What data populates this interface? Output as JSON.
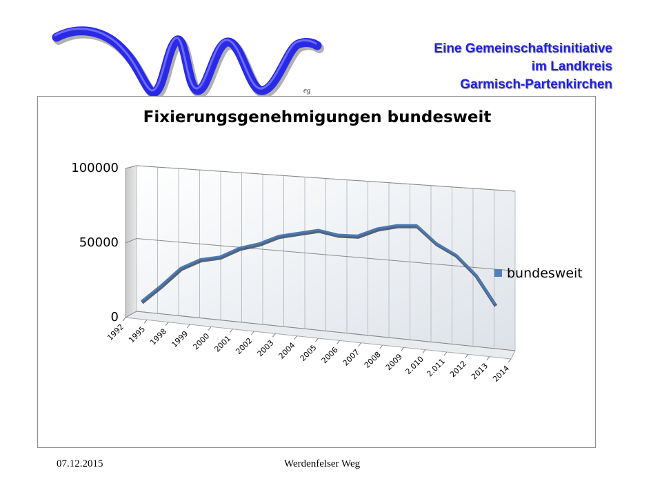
{
  "header": {
    "logo_suffix": "eg",
    "initiative_lines": [
      "Eine Gemeinschaftsinitiative",
      "im Landkreis",
      "Garmisch-Partenkirchen"
    ]
  },
  "chart_data": {
    "type": "line",
    "title": "Fixierungsgenehmigungen bundesweit",
    "categories": [
      "1992",
      "1995",
      "1998",
      "1999",
      "2000",
      "2001",
      "2002",
      "2003",
      "2004",
      "2005",
      "2006",
      "2007",
      "2008",
      "2009",
      "2.010",
      "2.011",
      "2012",
      "2013",
      "2014"
    ],
    "series": [
      {
        "name": "bundesweit",
        "values": [
          10000,
          22000,
          35000,
          42000,
          45000,
          52000,
          56000,
          62000,
          65000,
          68000,
          66000,
          66500,
          72000,
          75000,
          76000,
          66000,
          60000,
          49000,
          32000
        ]
      }
    ],
    "ylim": [
      0,
      100000
    ],
    "yticks": [
      "0",
      "50000",
      "100000"
    ],
    "grid": true,
    "legend": "right",
    "colors": {
      "line": "#4a7ab5",
      "line_shadow": "#2a3f5c",
      "legend_marker": "#4f81bd"
    }
  },
  "footer": {
    "date": "07.12.2015",
    "name": "Werdenfelser Weg"
  }
}
